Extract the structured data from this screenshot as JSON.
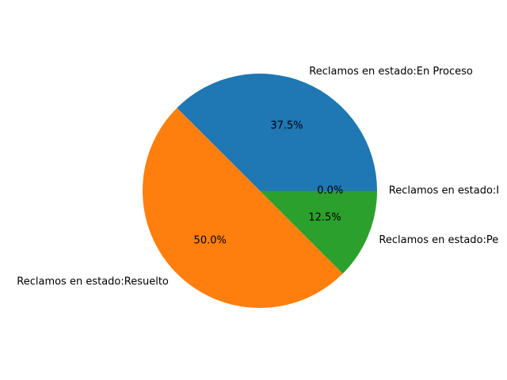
{
  "chart_data": {
    "type": "pie",
    "title": "",
    "start_angle_deg": 0,
    "direction": "counterclockwise",
    "slices": [
      {
        "label": "Reclamos en estado:En Proceso",
        "value": 37.5,
        "pct_label": "37.5%",
        "color": "#1f77b4"
      },
      {
        "label": "Reclamos en estado:Resuelto",
        "value": 50.0,
        "pct_label": "50.0%",
        "color": "#ff7f0e"
      },
      {
        "label": "Reclamos en estado:Pe",
        "value": 12.5,
        "pct_label": "12.5%",
        "color": "#2ca02c"
      },
      {
        "label": "Reclamos en estado:I",
        "value": 0.0,
        "pct_label": "0.0%",
        "color": "#d62728"
      }
    ]
  }
}
